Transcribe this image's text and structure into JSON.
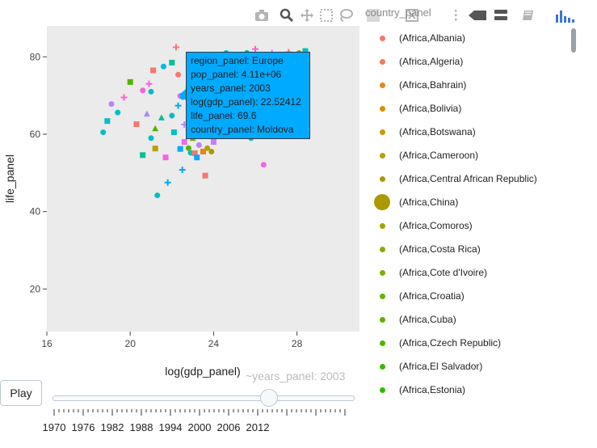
{
  "toolbar": {
    "title": "country_panel",
    "icons": [
      "camera-icon",
      "zoom-icon",
      "pan-icon",
      "box-select-icon",
      "lasso-icon",
      "zoom-in-icon",
      "zoom-out-icon",
      "autoscale-icon",
      "reset-axes-icon",
      "spike-lines-icon",
      "hover-closest-icon",
      "hover-compare-icon",
      "plotly-logo-icon"
    ]
  },
  "chart_data": {
    "type": "scatter",
    "xlabel": "log(gdp_panel)",
    "ylabel": "life_panel",
    "xlim": [
      16,
      31
    ],
    "ylim": [
      9,
      88
    ],
    "xticks": [
      16,
      20,
      24,
      28
    ],
    "yticks": [
      20,
      40,
      60,
      80
    ],
    "grid": false,
    "background": "#ebebeb",
    "legend_title": "country_panel",
    "legend_position": "right",
    "frame_year": 2003,
    "points": [
      {
        "x": 18.7,
        "y": 60.5,
        "c": "#00bfc4",
        "s": "o"
      },
      {
        "x": 18.9,
        "y": 63.4,
        "c": "#00bfc4",
        "s": "sq"
      },
      {
        "x": 19.1,
        "y": 67.8,
        "c": "#b983ff",
        "s": "o"
      },
      {
        "x": 19.4,
        "y": 65.6,
        "c": "#00bfc4",
        "s": "o"
      },
      {
        "x": 19.7,
        "y": 69.5,
        "c": "#fb61d7",
        "s": "+"
      },
      {
        "x": 20.0,
        "y": 73.5,
        "c": "#53b400",
        "s": "sq"
      },
      {
        "x": 20.3,
        "y": 62.6,
        "c": "#f8766d",
        "s": "sq"
      },
      {
        "x": 20.6,
        "y": 71.3,
        "c": "#fb61d7",
        "s": "o"
      },
      {
        "x": 20.6,
        "y": 54.6,
        "c": "#00c094",
        "s": "sq"
      },
      {
        "x": 20.8,
        "y": 65.3,
        "c": "#a58aff",
        "s": "tri"
      },
      {
        "x": 20.9,
        "y": 73.0,
        "c": "#fb61d7",
        "s": "+"
      },
      {
        "x": 21.0,
        "y": 71.0,
        "c": "#00bfc4",
        "s": "o"
      },
      {
        "x": 21.0,
        "y": 59.0,
        "c": "#00bfc4",
        "s": "o"
      },
      {
        "x": 21.1,
        "y": 76.5,
        "c": "#f8766d",
        "s": "sq"
      },
      {
        "x": 21.2,
        "y": 61.5,
        "c": "#53b400",
        "s": "tri"
      },
      {
        "x": 21.2,
        "y": 56.3,
        "c": "#b79f00",
        "s": "sq"
      },
      {
        "x": 21.3,
        "y": 44.2,
        "c": "#00bfc4",
        "s": "o"
      },
      {
        "x": 21.5,
        "y": 64.3,
        "c": "#00c094",
        "s": "tri"
      },
      {
        "x": 21.6,
        "y": 77.5,
        "c": "#00b6eb",
        "s": "o"
      },
      {
        "x": 21.7,
        "y": 54.0,
        "c": "#f564e3",
        "s": "sq"
      },
      {
        "x": 21.8,
        "y": 47.5,
        "c": "#00a9ff",
        "s": "+"
      },
      {
        "x": 22.0,
        "y": 64.8,
        "c": "#00bfc4",
        "s": "o"
      },
      {
        "x": 22.0,
        "y": 78.5,
        "c": "#00c094",
        "s": "sq"
      },
      {
        "x": 22.1,
        "y": 60.5,
        "c": "#00bfc4",
        "s": "sq"
      },
      {
        "x": 22.2,
        "y": 82.5,
        "c": "#f8766d",
        "s": "+"
      },
      {
        "x": 22.3,
        "y": 75.4,
        "c": "#f8766d",
        "s": "o"
      },
      {
        "x": 22.3,
        "y": 67.4,
        "c": "#00a9ff",
        "s": "+"
      },
      {
        "x": 22.4,
        "y": 69.9,
        "c": "#f564e3",
        "s": "o"
      },
      {
        "x": 22.4,
        "y": 56.2,
        "c": "#00a9ff",
        "s": "sq"
      },
      {
        "x": 22.5,
        "y": 50.8,
        "c": "#00a9ff",
        "s": "+"
      },
      {
        "x": 22.6,
        "y": 62.5,
        "c": "#b983ff",
        "s": "+"
      },
      {
        "x": 22.6,
        "y": 58.0,
        "c": "#e76bf3",
        "s": "sq"
      },
      {
        "x": 22.8,
        "y": 56.4,
        "c": "#53b400",
        "s": "o"
      },
      {
        "x": 22.9,
        "y": 55.2,
        "c": "#00bfc4",
        "s": "o"
      },
      {
        "x": 23.0,
        "y": 59.0,
        "c": "#7cae00",
        "s": "tri"
      },
      {
        "x": 23.1,
        "y": 55.1,
        "c": "#f8766d",
        "s": "sq"
      },
      {
        "x": 23.2,
        "y": 54.0,
        "c": "#00a9ff",
        "s": "sq"
      },
      {
        "x": 23.3,
        "y": 57.2,
        "c": "#b983ff",
        "s": "o"
      },
      {
        "x": 23.5,
        "y": 55.5,
        "c": "#e7861b",
        "s": "sq"
      },
      {
        "x": 23.6,
        "y": 49.3,
        "c": "#f8766d",
        "s": "sq"
      },
      {
        "x": 23.7,
        "y": 56.4,
        "c": "#b79f00",
        "s": "o"
      },
      {
        "x": 23.9,
        "y": 55.5,
        "c": "#aa9a00",
        "s": "o"
      },
      {
        "x": 24.0,
        "y": 58.0,
        "c": "#c77cff",
        "s": "sq"
      },
      {
        "x": 23.9,
        "y": 61.5,
        "c": "#53b400",
        "s": "o"
      },
      {
        "x": 24.0,
        "y": 67.5,
        "c": "#00bfc4",
        "s": "+"
      },
      {
        "x": 24.6,
        "y": 81.0,
        "c": "#00bfc4",
        "s": "o"
      },
      {
        "x": 25.0,
        "y": 79.5,
        "c": "#00b6eb",
        "s": "+"
      },
      {
        "x": 25.6,
        "y": 81.0,
        "c": "#00c094",
        "s": "o"
      },
      {
        "x": 26.0,
        "y": 80.0,
        "c": "#00bfc4",
        "s": "sq"
      },
      {
        "x": 26.0,
        "y": 82.0,
        "c": "#fb61d7",
        "s": "+"
      },
      {
        "x": 26.3,
        "y": 79.6,
        "c": "#00b0f6",
        "s": "o"
      },
      {
        "x": 26.4,
        "y": 52.1,
        "c": "#f564e3",
        "s": "o"
      },
      {
        "x": 26.8,
        "y": 81.0,
        "c": "#b983ff",
        "s": "+"
      },
      {
        "x": 27.0,
        "y": 79.5,
        "c": "#00bfc4",
        "s": "o"
      },
      {
        "x": 27.6,
        "y": 81.2,
        "c": "#f8766d",
        "s": "+"
      },
      {
        "x": 28.0,
        "y": 79.2,
        "c": "#e76bf3",
        "s": "sq"
      },
      {
        "x": 28.1,
        "y": 81.0,
        "c": "#aa9a00",
        "s": "o"
      },
      {
        "x": 28.4,
        "y": 80.6,
        "c": "#00c094",
        "s": "o"
      },
      {
        "x": 28.4,
        "y": 81.5,
        "c": "#00bfc4",
        "s": "sq"
      },
      {
        "x": 25.8,
        "y": 59.0,
        "c": "#00bfc4",
        "s": "o"
      },
      {
        "x": 26.5,
        "y": 59.5,
        "c": "#00a9ff",
        "s": "o"
      }
    ],
    "hover": {
      "region": "region_panel: Europe",
      "pop": "pop_panel: 4.11e+06",
      "year": "years_panel: 2003",
      "gdp": "log(gdp_panel): 22.52412",
      "life": "life_panel: 69.6",
      "country": "country_panel: Moldova",
      "x": 22.52,
      "y": 69.6
    },
    "legend": [
      {
        "label": "(Africa,Albania)",
        "color": "#f8766d",
        "size": 7
      },
      {
        "label": "(Africa,Algeria)",
        "color": "#f07e56",
        "size": 7
      },
      {
        "label": "(Africa,Bahrain)",
        "color": "#e7861b",
        "size": 7
      },
      {
        "label": "(Africa,Bolivia)",
        "color": "#d89000",
        "size": 7
      },
      {
        "label": "(Africa,Botswana)",
        "color": "#c99800",
        "size": 7
      },
      {
        "label": "(Africa,Cameroon)",
        "color": "#b79f00",
        "size": 7
      },
      {
        "label": "(Africa,Central African Republic)",
        "color": "#aa9a00",
        "size": 7
      },
      {
        "label": "(Africa,China)",
        "color": "#aa9a00",
        "size": 20
      },
      {
        "label": "(Africa,Comoros)",
        "color": "#a3a500",
        "size": 7
      },
      {
        "label": "(Africa,Costa Rica)",
        "color": "#8fa900",
        "size": 7
      },
      {
        "label": "(Africa,Cote d'Ivoire)",
        "color": "#7cae00",
        "size": 7
      },
      {
        "label": "(Africa,Croatia)",
        "color": "#6bb100",
        "size": 7
      },
      {
        "label": "(Africa,Cuba)",
        "color": "#5bb300",
        "size": 7
      },
      {
        "label": "(Africa,Czech Republic)",
        "color": "#4eb400",
        "size": 7
      },
      {
        "label": "(Africa,El Salvador)",
        "color": "#3db700",
        "size": 7
      },
      {
        "label": "(Africa,Estonia)",
        "color": "#2dba00",
        "size": 7
      }
    ]
  },
  "controls": {
    "play_label": "Play",
    "slider_value": "~years_panel: 2003",
    "slider_fraction": 0.72,
    "slider_years": [
      "1970",
      "1976",
      "1982",
      "1988",
      "1994",
      "2000",
      "2006",
      "2012"
    ]
  }
}
